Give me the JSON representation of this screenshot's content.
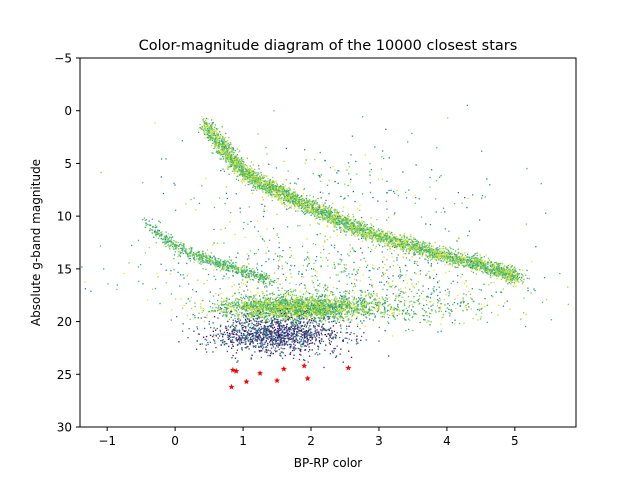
{
  "chart_data": {
    "type": "scatter",
    "title": "Color-magnitude diagram of the 10000 closest stars",
    "xlabel": "BP-RP color",
    "ylabel": "Absolute g-band magnitude",
    "xlim": [
      -1.4,
      5.9
    ],
    "ylim": [
      30,
      -5
    ],
    "y_axis_inverted": true,
    "x_ticks": [
      -1,
      0,
      1,
      2,
      3,
      4,
      5
    ],
    "y_ticks": [
      -5,
      0,
      5,
      10,
      15,
      20,
      25,
      30
    ],
    "x_tick_labels": [
      "−1",
      "0",
      "1",
      "2",
      "3",
      "4",
      "5"
    ],
    "y_tick_labels": [
      "−5",
      "0",
      "5",
      "10",
      "15",
      "20",
      "25",
      "30"
    ],
    "grid": false,
    "legend": "none",
    "colormap": [
      "#440154",
      "#3b528b",
      "#21918c",
      "#5ec962",
      "#fde725"
    ],
    "highlight_color": "#ff0000",
    "series": [
      {
        "marker": "dot",
        "approx_point_count": 10000,
        "features": [
          {
            "shape": "curve",
            "x": [
              0.45,
              0.7,
              0.95,
              1.25,
              1.6,
              2.0,
              2.4,
              2.8,
              3.3,
              3.8,
              4.3,
              4.7,
              5.05
            ],
            "y": [
              1.2,
              3.5,
              5.5,
              6.8,
              7.9,
              9.2,
              10.4,
              11.5,
              12.5,
              13.5,
              14.3,
              15.0,
              15.9
            ],
            "points": 4200,
            "spread": [
              0.06,
              0.35
            ],
            "color_range": [
              0.55,
              1.0
            ]
          },
          {
            "shape": "curve",
            "x": [
              -0.4,
              -0.1,
              0.2,
              0.5,
              0.8,
              1.1,
              1.4
            ],
            "y": [
              10.5,
              12.4,
              13.5,
              14.2,
              14.8,
              15.5,
              16.2
            ],
            "points": 700,
            "spread": [
              0.05,
              0.25
            ],
            "color_range": [
              0.5,
              0.9
            ]
          },
          {
            "shape": "blob",
            "cx": 1.75,
            "cy": 18.7,
            "rx": 0.9,
            "ry": 0.9,
            "points": 2300,
            "color_range": [
              0.55,
              1.0
            ]
          },
          {
            "shape": "blob",
            "cx": 1.45,
            "cy": 21.2,
            "rx": 0.8,
            "ry": 1.4,
            "points": 1200,
            "color_range": [
              0.0,
              0.45
            ]
          },
          {
            "shape": "blob",
            "cx": 2.2,
            "cy": 15.5,
            "rx": 2.4,
            "ry": 3.0,
            "points": 600,
            "color_range": [
              0.4,
              1.0
            ]
          },
          {
            "shape": "blob",
            "cx": 3.0,
            "cy": 18.5,
            "rx": 1.6,
            "ry": 1.6,
            "points": 600,
            "color_range": [
              0.4,
              1.0
            ]
          },
          {
            "shape": "blob",
            "cx": 2.3,
            "cy": 8.0,
            "rx": 2.0,
            "ry": 5.0,
            "points": 300,
            "color_range": [
              0.3,
              1.0
            ]
          },
          {
            "shape": "blob",
            "cx": 1.8,
            "cy": 22.5,
            "rx": 1.0,
            "ry": 1.5,
            "points": 100,
            "color_range": [
              0.0,
              0.35
            ]
          }
        ]
      },
      {
        "marker": "star",
        "points": [
          {
            "x": 0.85,
            "y": 24.6
          },
          {
            "x": 0.9,
            "y": 24.7
          },
          {
            "x": 0.83,
            "y": 26.2
          },
          {
            "x": 1.05,
            "y": 25.7
          },
          {
            "x": 1.25,
            "y": 24.9
          },
          {
            "x": 1.5,
            "y": 25.6
          },
          {
            "x": 1.6,
            "y": 24.5
          },
          {
            "x": 1.9,
            "y": 24.2
          },
          {
            "x": 1.95,
            "y": 25.4
          },
          {
            "x": 2.55,
            "y": 24.4
          }
        ]
      }
    ]
  }
}
